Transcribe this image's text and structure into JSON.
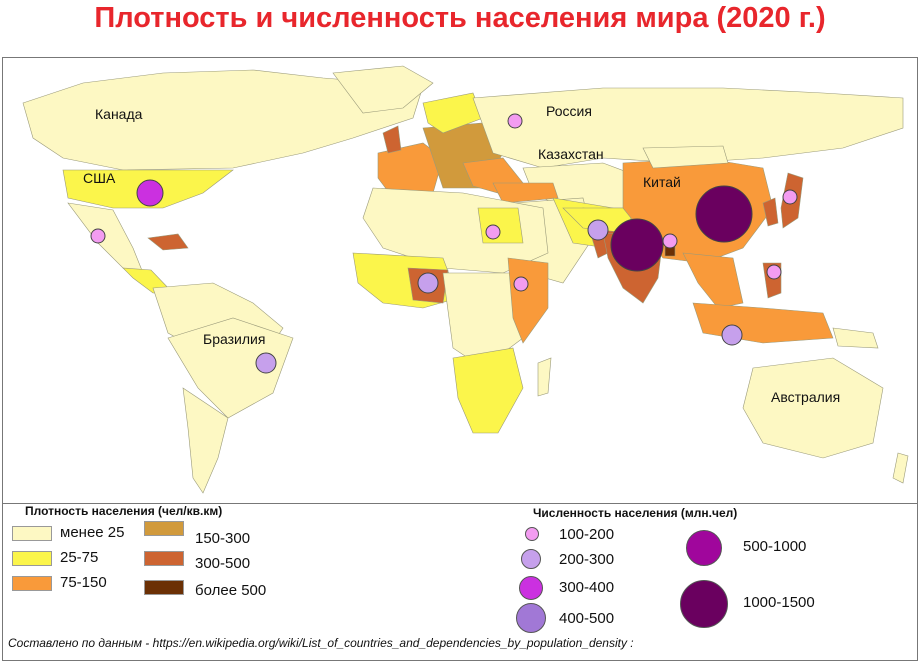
{
  "title": "Плотность и численность населения мира (2020 г.)",
  "country_labels": {
    "canada": "Канада",
    "usa": "США",
    "russia": "Россия",
    "kazakhstan": "Казахстан",
    "china": "Китай",
    "brazil": "Бразилия",
    "australia": "Австралия"
  },
  "legend": {
    "density_title": "Плотность населения (чел/кв.км)",
    "density_classes": [
      {
        "label": "менее 25",
        "color": "#fdf8c3"
      },
      {
        "label": "25-75",
        "color": "#fbf54b"
      },
      {
        "label": "75-150",
        "color": "#f99a3a"
      },
      {
        "label": "150-300",
        "color": "#d19a3c"
      },
      {
        "label": "300-500",
        "color": "#cd6431"
      },
      {
        "label": "более 500",
        "color": "#6b3005"
      }
    ],
    "population_title": "Численность населения (млн.чел)",
    "population_classes": [
      {
        "label": "100-200",
        "color": "#f39cf1"
      },
      {
        "label": "200-300",
        "color": "#c6a0ec"
      },
      {
        "label": "300-400",
        "color": "#cb30e0"
      },
      {
        "label": "400-500",
        "color": "#a178d6"
      },
      {
        "label": "500-1000",
        "color": "#a0069c"
      },
      {
        "label": "1000-1500",
        "color": "#6a005f"
      }
    ]
  },
  "source": "Составлено по данным - https://en.wikipedia.org/wiki/List_of_countries_and_dependencies_by_population_density :"
}
